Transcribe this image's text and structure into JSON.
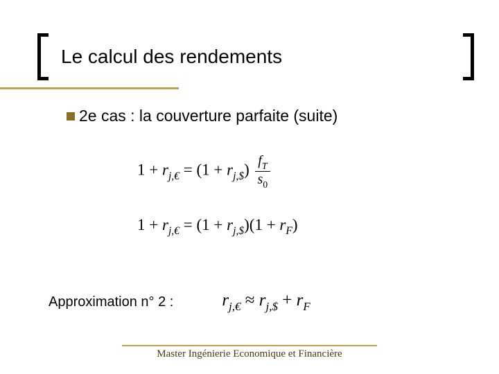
{
  "title": "Le calcul des rendements",
  "bullet": "2e cas : la couverture parfaite (suite)",
  "formula1": {
    "lhs_base": "r",
    "lhs_sub": "j,€",
    "rhs_base": "r",
    "rhs_sub": "j,$",
    "frac_num_base": "f",
    "frac_num_sub": "T",
    "frac_den_base": "s",
    "frac_den_sub": "0"
  },
  "formula2": {
    "lhs_base": "r",
    "lhs_sub": "j,€",
    "rhs1_base": "r",
    "rhs1_sub": "j,$",
    "rhs2_base": "r",
    "rhs2_sub": "F"
  },
  "approx": {
    "label": "Approximation n° 2 :",
    "lhs_base": "r",
    "lhs_sub": "j,€",
    "rhs1_base": "r",
    "rhs1_sub": "j,$",
    "rhs2_base": "r",
    "rhs2_sub": "F"
  },
  "footer": "Master Ingénierie Economique et Financière",
  "colors": {
    "gold": "#bfa24a",
    "bullet": "#8a7027",
    "footer_text": "#4a3a10",
    "text": "#000000",
    "background": "#ffffff"
  },
  "typography": {
    "title_fontsize": 28,
    "bullet_fontsize": 23,
    "formula_fontsize": 23,
    "approx_label_fontsize": 20,
    "approx_formula_fontsize": 25,
    "footer_fontsize": 15
  }
}
